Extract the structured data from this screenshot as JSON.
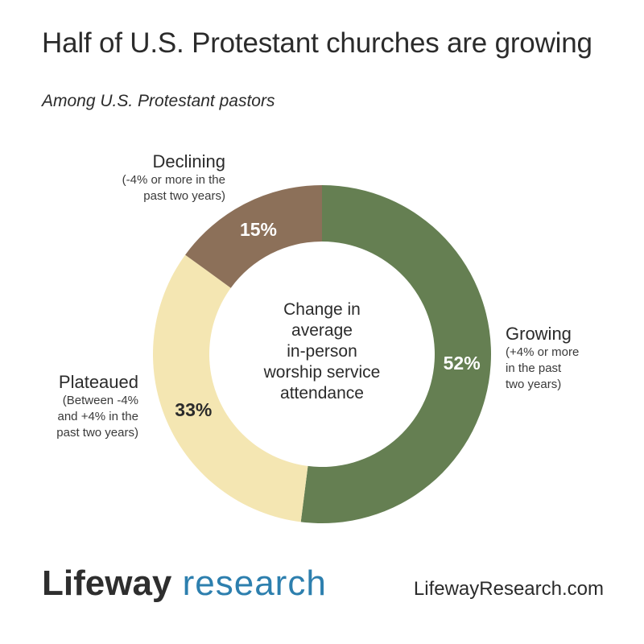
{
  "header": {
    "title": "Half of U.S. Protestant churches are growing",
    "subtitle": "Among U.S. Protestant pastors"
  },
  "chart_data": {
    "type": "pie",
    "variant": "donut",
    "title": "Half of U.S. Protestant churches are growing",
    "subtitle": "Among U.S. Protestant pastors",
    "center_label": "Change in average in-person worship service attendance",
    "center_lines": [
      "Change in",
      "average",
      "in-person",
      "worship service",
      "attendance"
    ],
    "slices": [
      {
        "name": "Growing",
        "value": 52,
        "value_label": "52%",
        "color": "#657f52",
        "description_lines": [
          "(+4% or more",
          "in the past",
          "two years)"
        ]
      },
      {
        "name": "Plateaued",
        "label": "Plateaued",
        "value": 33,
        "value_label": "33%",
        "color": "#f4e6b2",
        "description_lines": [
          "(Between -4%",
          "and +4% in the",
          "past two years)"
        ]
      },
      {
        "name": "Declining",
        "value": 15,
        "value_label": "15%",
        "color": "#8c7059",
        "description_lines": [
          "(-4% or more in the",
          "past two years)"
        ]
      }
    ]
  },
  "footer": {
    "brand_part1": "Lifeway",
    "brand_part2": " research",
    "url": "LifewayResearch.com"
  }
}
